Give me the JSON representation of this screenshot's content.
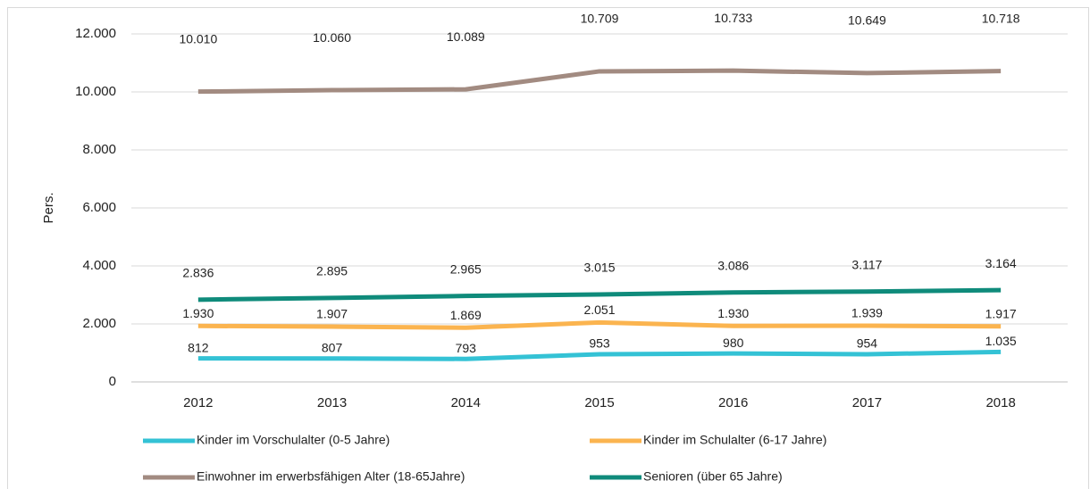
{
  "chart_data": {
    "type": "line",
    "y_label": "Pers.",
    "categories": [
      "2012",
      "2013",
      "2014",
      "2015",
      "2016",
      "2017",
      "2018"
    ],
    "series": [
      {
        "name": "Kinder im Vorschulalter (0-5 Jahre)",
        "color": "#34c2d5",
        "values": [
          812,
          807,
          793,
          953,
          980,
          954,
          1035
        ],
        "value_labels": [
          "812",
          "807",
          "793",
          "953",
          "980",
          "954",
          "1.035"
        ]
      },
      {
        "name": "Kinder im Schulalter (6-17 Jahre)",
        "color": "#fbb44f",
        "values": [
          1930,
          1907,
          1869,
          2051,
          1930,
          1939,
          1917
        ],
        "value_labels": [
          "1.930",
          "1.907",
          "1.869",
          "2.051",
          "1.930",
          "1.939",
          "1.917"
        ]
      },
      {
        "name": "Einwohner im erwerbsfähigen Alter (18-65Jahre)",
        "color": "#a28b81",
        "values": [
          10010,
          10060,
          10089,
          10709,
          10733,
          10649,
          10718
        ],
        "value_labels": [
          "10.010",
          "10.060",
          "10.089",
          "10.709",
          "10.733",
          "10.649",
          "10.718"
        ]
      },
      {
        "name": "Senioren (über 65 Jahre)",
        "color": "#0f8b7b",
        "values": [
          2836,
          2895,
          2965,
          3015,
          3086,
          3117,
          3164
        ],
        "value_labels": [
          "2.836",
          "2.895",
          "2.965",
          "3.015",
          "3.086",
          "3.117",
          "3.164"
        ]
      }
    ],
    "ylim": [
      0,
      12000
    ],
    "yticks": [
      0,
      {
        "value": 2000,
        "label": "2.000"
      },
      {
        "value": 4000,
        "label": "4.000"
      },
      {
        "value": 6000,
        "label": "6.000"
      },
      {
        "value": 8000,
        "label": "8.000"
      },
      {
        "value": 10000,
        "label": "10.000"
      },
      {
        "value": 12000,
        "label": "12.000"
      }
    ],
    "grid": true
  }
}
